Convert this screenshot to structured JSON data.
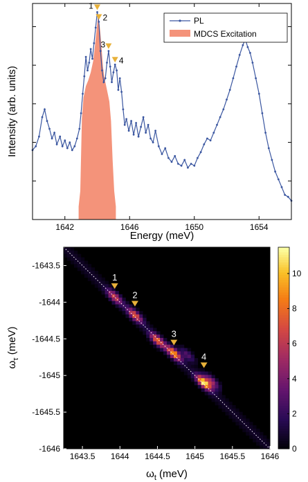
{
  "chart_data": [
    {
      "type": "line",
      "xlabel": "Energy (meV)",
      "ylabel": "Intensity (arb. units)",
      "xlim": [
        1640,
        1656
      ],
      "x_ticks": [
        "1642",
        "1646",
        "1650",
        "1654"
      ],
      "legend": {
        "placement": "top-right"
      },
      "series": [
        {
          "name": "PL",
          "color": "#3a56a0",
          "points": [
            [
              1640.0,
              0.29
            ],
            [
              1640.2,
              0.31
            ],
            [
              1640.4,
              0.36
            ],
            [
              1640.6,
              0.46
            ],
            [
              1640.75,
              0.5
            ],
            [
              1640.9,
              0.44
            ],
            [
              1641.05,
              0.4
            ],
            [
              1641.2,
              0.35
            ],
            [
              1641.35,
              0.38
            ],
            [
              1641.5,
              0.32
            ],
            [
              1641.7,
              0.36
            ],
            [
              1641.85,
              0.31
            ],
            [
              1642.0,
              0.34
            ],
            [
              1642.15,
              0.3
            ],
            [
              1642.3,
              0.33
            ],
            [
              1642.45,
              0.29
            ],
            [
              1642.6,
              0.31
            ],
            [
              1642.75,
              0.35
            ],
            [
              1642.9,
              0.4
            ],
            [
              1643.0,
              0.48
            ],
            [
              1643.1,
              0.58
            ],
            [
              1643.2,
              0.67
            ],
            [
              1643.3,
              0.77
            ],
            [
              1643.4,
              0.7
            ],
            [
              1643.5,
              0.74
            ],
            [
              1643.6,
              0.81
            ],
            [
              1643.7,
              0.76
            ],
            [
              1643.8,
              0.84
            ],
            [
              1643.9,
              0.92
            ],
            [
              1644.0,
              1.0
            ],
            [
              1644.1,
              0.95
            ],
            [
              1644.2,
              0.8
            ],
            [
              1644.3,
              0.7
            ],
            [
              1644.4,
              0.64
            ],
            [
              1644.5,
              0.66
            ],
            [
              1644.6,
              0.74
            ],
            [
              1644.7,
              0.8
            ],
            [
              1644.8,
              0.72
            ],
            [
              1644.9,
              0.64
            ],
            [
              1645.0,
              0.69
            ],
            [
              1645.1,
              0.73
            ],
            [
              1645.2,
              0.7
            ],
            [
              1645.3,
              0.6
            ],
            [
              1645.4,
              0.66
            ],
            [
              1645.5,
              0.59
            ],
            [
              1645.6,
              0.5
            ],
            [
              1645.7,
              0.42
            ],
            [
              1645.8,
              0.45
            ],
            [
              1645.95,
              0.39
            ],
            [
              1646.1,
              0.44
            ],
            [
              1646.25,
              0.37
            ],
            [
              1646.4,
              0.43
            ],
            [
              1646.55,
              0.36
            ],
            [
              1646.7,
              0.41
            ],
            [
              1646.85,
              0.46
            ],
            [
              1647.0,
              0.38
            ],
            [
              1647.15,
              0.42
            ],
            [
              1647.3,
              0.35
            ],
            [
              1647.45,
              0.33
            ],
            [
              1647.6,
              0.39
            ],
            [
              1647.8,
              0.31
            ],
            [
              1648.0,
              0.27
            ],
            [
              1648.2,
              0.3
            ],
            [
              1648.4,
              0.25
            ],
            [
              1648.6,
              0.23
            ],
            [
              1648.8,
              0.26
            ],
            [
              1649.0,
              0.22
            ],
            [
              1649.2,
              0.21
            ],
            [
              1649.4,
              0.24
            ],
            [
              1649.6,
              0.2
            ],
            [
              1649.8,
              0.22
            ],
            [
              1650.0,
              0.21
            ],
            [
              1650.2,
              0.25
            ],
            [
              1650.4,
              0.28
            ],
            [
              1650.6,
              0.32
            ],
            [
              1650.8,
              0.35
            ],
            [
              1651.0,
              0.34
            ],
            [
              1651.2,
              0.38
            ],
            [
              1651.4,
              0.42
            ],
            [
              1651.6,
              0.46
            ],
            [
              1651.8,
              0.5
            ],
            [
              1652.0,
              0.55
            ],
            [
              1652.2,
              0.6
            ],
            [
              1652.4,
              0.66
            ],
            [
              1652.6,
              0.72
            ],
            [
              1652.8,
              0.78
            ],
            [
              1653.0,
              0.83
            ],
            [
              1653.15,
              0.86
            ],
            [
              1653.3,
              0.82
            ],
            [
              1653.45,
              0.79
            ],
            [
              1653.6,
              0.74
            ],
            [
              1653.8,
              0.66
            ],
            [
              1654.0,
              0.58
            ],
            [
              1654.2,
              0.48
            ],
            [
              1654.4,
              0.38
            ],
            [
              1654.6,
              0.3
            ],
            [
              1654.8,
              0.24
            ],
            [
              1655.0,
              0.18
            ],
            [
              1655.2,
              0.14
            ],
            [
              1655.4,
              0.1
            ],
            [
              1655.6,
              0.06
            ],
            [
              1655.8,
              0.05
            ],
            [
              1656.0,
              0.03
            ]
          ]
        },
        {
          "name": "MDCS Excitation",
          "color": "#f4937a",
          "kind": "area",
          "points": [
            [
              1642.85,
              0.0
            ],
            [
              1642.95,
              0.08
            ],
            [
              1643.05,
              0.45
            ],
            [
              1643.15,
              0.56
            ],
            [
              1643.3,
              0.62
            ],
            [
              1643.45,
              0.65
            ],
            [
              1643.6,
              0.69
            ],
            [
              1643.75,
              0.75
            ],
            [
              1643.85,
              0.82
            ],
            [
              1643.95,
              0.9
            ],
            [
              1644.05,
              0.98
            ],
            [
              1644.15,
              0.93
            ],
            [
              1644.25,
              0.84
            ],
            [
              1644.35,
              0.72
            ],
            [
              1644.45,
              0.66
            ],
            [
              1644.55,
              0.62
            ],
            [
              1644.65,
              0.58
            ],
            [
              1644.75,
              0.54
            ],
            [
              1644.85,
              0.44
            ],
            [
              1644.95,
              0.24
            ],
            [
              1645.05,
              0.08
            ],
            [
              1645.15,
              0.0
            ]
          ]
        }
      ],
      "annotations": [
        {
          "label": "1",
          "x": 1644.0,
          "y": 1.0
        },
        {
          "label": "2",
          "x": 1644.1,
          "y": 0.95
        },
        {
          "label": "3",
          "x": 1644.7,
          "y": 0.8
        },
        {
          "label": "4",
          "x": 1645.1,
          "y": 0.73
        }
      ],
      "marker_color": "#e8b13a"
    },
    {
      "type": "heatmap",
      "xlabel": "ω",
      "xlabel_sub": "t",
      "ylabel": "ω",
      "ylabel_sub": "τ",
      "xlabel_unit": " (meV)",
      "ylabel_unit": " (meV)",
      "xlim": [
        1643.25,
        1646.0
      ],
      "ylim": [
        -1646.0,
        -1643.25
      ],
      "x_ticks": [
        "1643.5",
        "1644",
        "1644.5",
        "1645",
        "1645.5",
        "1646"
      ],
      "y_ticks": [
        "-1643.5",
        "-1644",
        "-1644.5",
        "-1645",
        "-1645.5",
        "-1646"
      ],
      "colorbar": {
        "min": 0,
        "max": 11.5,
        "ticks": [
          "0",
          "2",
          "4",
          "6",
          "8",
          "10"
        ]
      },
      "diagonal": true,
      "peaks": [
        {
          "x": 1643.93,
          "y": -1643.93,
          "amp": 6.0
        },
        {
          "x": 1644.2,
          "y": -1644.18,
          "amp": 7.0
        },
        {
          "x": 1644.5,
          "y": -1644.52,
          "amp": 7.5
        },
        {
          "x": 1644.72,
          "y": -1644.7,
          "amp": 9.0
        },
        {
          "x": 1645.12,
          "y": -1645.1,
          "amp": 11.0
        },
        {
          "x": 1645.22,
          "y": -1645.08,
          "amp": 5.0
        },
        {
          "x": 1644.9,
          "y": -1644.72,
          "amp": 3.0
        }
      ],
      "annotations": [
        {
          "label": "1",
          "x": 1643.93,
          "y": -1643.78
        },
        {
          "label": "2",
          "x": 1644.2,
          "y": -1644.02
        },
        {
          "label": "3",
          "x": 1644.72,
          "y": -1644.55
        },
        {
          "label": "4",
          "x": 1645.12,
          "y": -1644.86
        }
      ]
    }
  ]
}
